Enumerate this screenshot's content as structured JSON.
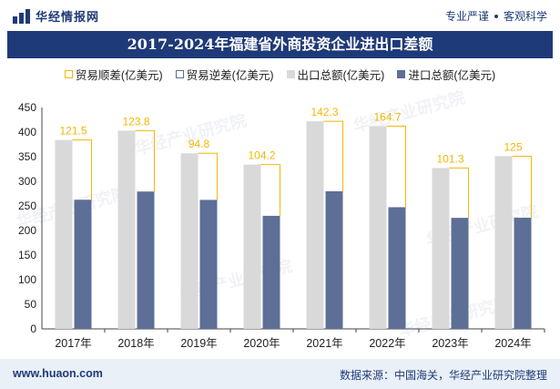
{
  "header": {
    "brand": "华经情报网",
    "slogan_left": "专业严谨",
    "slogan_right": "客观科学"
  },
  "footer": {
    "website": "www.huaon.com",
    "source": "数据来源：中国海关，华经产业研究院整理"
  },
  "watermark_text": "华经产业研究院",
  "colors": {
    "title_bg": "#1f3a78",
    "surplus": "#f2b705",
    "total": "#d9d9d9",
    "import": "#5d6f96"
  },
  "chart_data": {
    "type": "bar",
    "title": "2017-2024年福建省外商投资企业进出口差额",
    "categories": [
      "2017年",
      "2018年",
      "2019年",
      "2020年",
      "2021年",
      "2022年",
      "2023年",
      "2024年"
    ],
    "legend": [
      "贸易顺差(亿美元)",
      "贸易逆差(亿美元)",
      "出口总额(亿美元)",
      "进口总额(亿美元)"
    ],
    "legend_position": "top",
    "ylim": [
      0,
      450
    ],
    "yticks": [
      0,
      50,
      100,
      150,
      200,
      250,
      300,
      350,
      400,
      450
    ],
    "series": [
      {
        "name": "贸易顺差(亿美元)",
        "values": [
          121.5,
          123.8,
          94.8,
          104.2,
          142.3,
          164.7,
          101.3,
          125
        ]
      },
      {
        "name": "贸易逆差(亿美元)",
        "values": [
          0,
          0,
          0,
          0,
          0,
          0,
          0,
          0
        ]
      },
      {
        "name": "出口总额(亿美元)",
        "values": [
          384,
          403,
          357,
          334,
          422,
          412,
          327,
          351
        ]
      },
      {
        "name": "进口总额(亿美元)",
        "values": [
          262.5,
          279.2,
          262.2,
          229.8,
          279.7,
          247.3,
          225.7,
          226
        ]
      }
    ]
  }
}
